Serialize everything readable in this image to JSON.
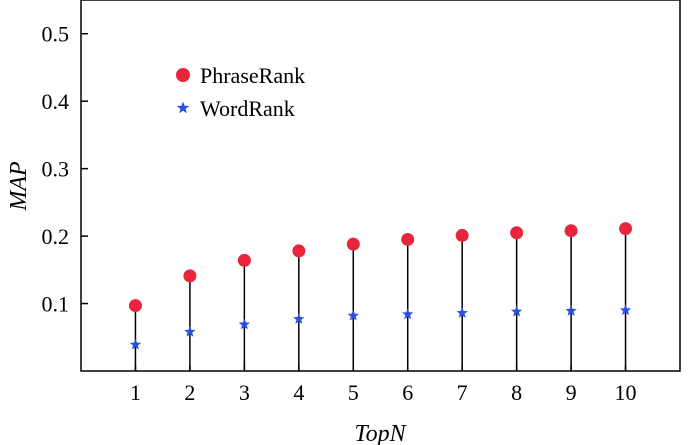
{
  "chart_data": {
    "type": "scatter",
    "xlabel": "TopN",
    "ylabel": "MAP",
    "x": [
      1,
      2,
      3,
      4,
      5,
      6,
      7,
      8,
      9,
      10
    ],
    "xlim": [
      0,
      11
    ],
    "ylim": [
      0,
      0.55
    ],
    "yticks": [
      0.1,
      0.2,
      0.3,
      0.4,
      0.5
    ],
    "ytick_labels": [
      "0.1",
      "0.2",
      "0.3",
      "0.4",
      "0.5"
    ],
    "xtick_labels": [
      "1",
      "2",
      "3",
      "4",
      "5",
      "6",
      "7",
      "8",
      "9",
      "10"
    ],
    "stems": true,
    "grid": false,
    "legend_position": "upper-left",
    "series": [
      {
        "name": "PhraseRank",
        "marker": "circle",
        "color": "#e8253b",
        "values": [
          0.097,
          0.141,
          0.164,
          0.178,
          0.188,
          0.195,
          0.201,
          0.205,
          0.208,
          0.211
        ]
      },
      {
        "name": "WordRank",
        "marker": "star",
        "color": "#2b4fe0",
        "values": [
          0.039,
          0.058,
          0.069,
          0.077,
          0.082,
          0.084,
          0.086,
          0.088,
          0.089,
          0.09
        ]
      }
    ]
  }
}
